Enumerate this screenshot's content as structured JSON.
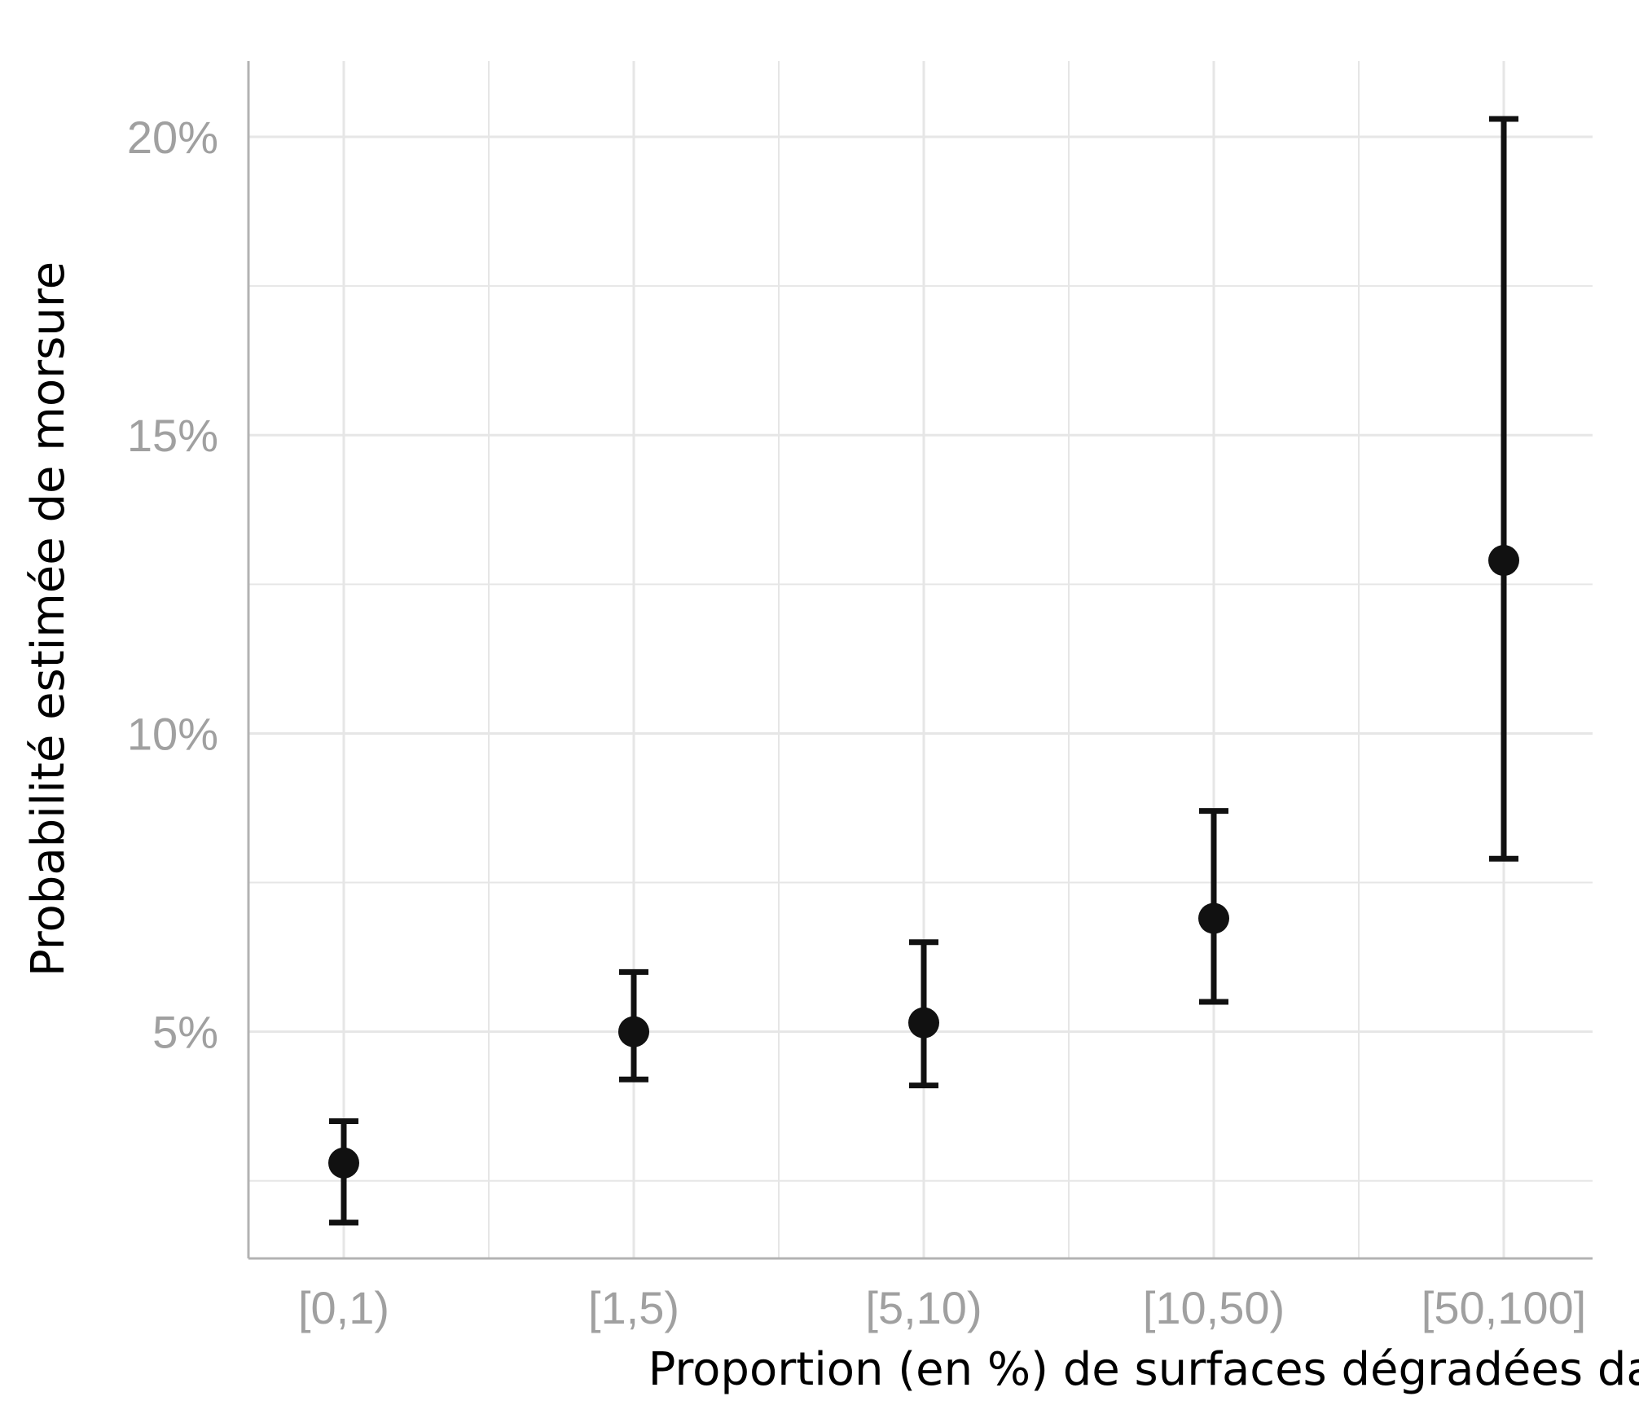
{
  "chart_data": {
    "type": "scatter",
    "error_bars": true,
    "categories": [
      "[0,1)",
      "[1,5)",
      "[5,10)",
      "[10,50)",
      "[50,100]"
    ],
    "values": [
      2.8,
      5.0,
      5.15,
      6.9,
      12.9
    ],
    "lower": [
      1.8,
      4.2,
      4.1,
      5.5,
      7.9
    ],
    "upper": [
      3.5,
      6.0,
      6.5,
      8.7,
      20.3
    ],
    "xlabel": "Proportion (en %) de surfaces dégradées dans la commune",
    "ylabel": "Probabilité estimée de morsure",
    "yticks": [
      5,
      10,
      15,
      20
    ],
    "ytick_labels": [
      "5%",
      "10%",
      "15%",
      "20%"
    ],
    "ylim": [
      1.2,
      21.5
    ],
    "grid": true,
    "colors": {
      "marker": "#111111",
      "grid": "#e6e6e6",
      "axis": "#b3b3b3",
      "tick_text": "#a0a0a0"
    }
  }
}
